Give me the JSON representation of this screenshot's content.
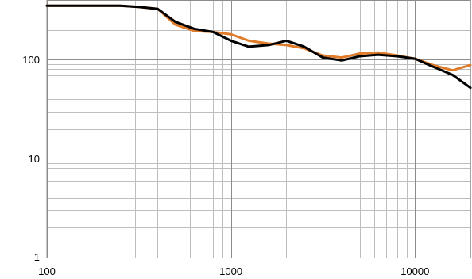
{
  "chart_data": {
    "type": "line",
    "title": "",
    "xlabel": "",
    "ylabel": "",
    "x_scale": "log",
    "y_scale": "log",
    "xlim": [
      100,
      20000
    ],
    "ylim": [
      1,
      400
    ],
    "grid": true,
    "legend": "none",
    "x_ticks": [
      {
        "value": 100,
        "label": "100"
      },
      {
        "value": 1000,
        "label": "1000"
      },
      {
        "value": 10000,
        "label": "10000"
      }
    ],
    "y_ticks": [
      {
        "value": 1,
        "label": "1"
      },
      {
        "value": 10,
        "label": "10"
      },
      {
        "value": 100,
        "label": "100"
      }
    ],
    "series": [
      {
        "color": "#e07b2a",
        "x": [
          100,
          250,
          315,
          400,
          500,
          630,
          800,
          1000,
          1250,
          1600,
          2000,
          2500,
          3150,
          4000,
          5000,
          6300,
          8000,
          10000,
          12500,
          16000,
          20000
        ],
        "y": [
          350,
          350,
          340,
          325,
          225,
          195,
          190,
          180,
          155,
          145,
          140,
          130,
          110,
          105,
          115,
          118,
          110,
          102,
          88,
          78,
          88
        ]
      },
      {
        "color": "#000000",
        "x": [
          100,
          250,
          315,
          400,
          500,
          630,
          800,
          1000,
          1250,
          1600,
          2000,
          2500,
          3150,
          4000,
          5000,
          6300,
          8000,
          10000,
          12500,
          16000,
          20000
        ],
        "y": [
          350,
          350,
          340,
          325,
          240,
          205,
          190,
          155,
          135,
          140,
          155,
          135,
          105,
          98,
          108,
          112,
          108,
          102,
          85,
          70,
          52
        ]
      }
    ]
  }
}
